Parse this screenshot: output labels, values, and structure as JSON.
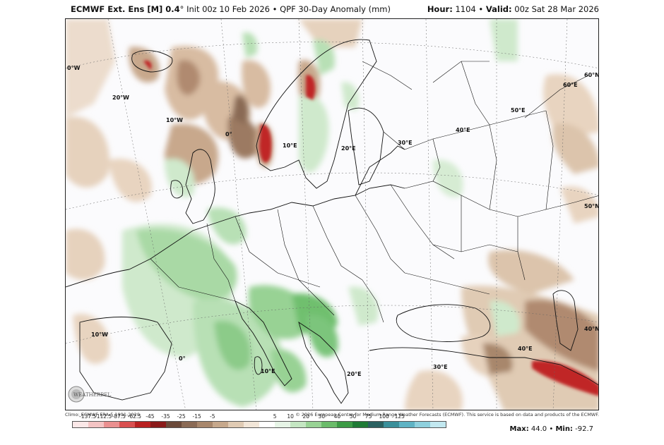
{
  "header": {
    "model": "ECMWF Ext. Ens [M] 0.4",
    "degree": "°",
    "init": "Init 00z 10 Feb 2026",
    "separator": "•",
    "product": "QPF 30-Day Anomaly (mm)",
    "hour_label": "Hour:",
    "hour_value": "1104",
    "valid_label": "Valid:",
    "valid_value": "00z Sat 28 Mar 2026"
  },
  "footer": {
    "climo": "Climo: ECMWF ERA-5 1991-2020",
    "copyright": "© 2026 European Centre for Medium-Range Weather Forecasts (ECMWF). This service is based on data and products of the ECMWF."
  },
  "legend": {
    "ticks": [
      "-137.5",
      "-112.5",
      "-87.5",
      "-62.5",
      "-45",
      "-35",
      "-25",
      "-15",
      "-5",
      "5",
      "10",
      "20",
      "30",
      "40",
      "50",
      "75",
      "100",
      "125"
    ],
    "colors": [
      "#fbe8e8",
      "#f4c4c4",
      "#ea9090",
      "#d95050",
      "#b82020",
      "#8a1a1a",
      "#6b4a3a",
      "#8a6a55",
      "#a8876c",
      "#c6a88c",
      "#e0cbb4",
      "#f2e6d8",
      "#ffffff",
      "#e6f4e6",
      "#c4e6c2",
      "#98d294",
      "#6bbb6a",
      "#3c9a45",
      "#1f7a35",
      "#2a6060",
      "#3a8f9a",
      "#5fb3c4",
      "#8ed0dd",
      "#c2e8f0"
    ]
  },
  "maxmin": {
    "max_label": "Max:",
    "max_value": "44.0",
    "min_label": "Min:",
    "min_value": "-92.7"
  },
  "map_labels": [
    "0°W",
    "20°W",
    "10°W",
    "0°",
    "10°E",
    "20°E",
    "30°E",
    "40°E",
    "50°E",
    "60°E",
    "60°N",
    "50°N",
    "40°N",
    "10°W",
    "0°",
    "10°E",
    "20°E",
    "30°E",
    "40°E"
  ],
  "logo_text": "WEATHERBELL",
  "colors": {
    "dry_light": "#e8d4c0",
    "dry_mid": "#c8a88c",
    "dry_dark": "#8a6a55",
    "very_dry": "#c02828",
    "wet_light": "#cfe9cc",
    "wet_mid": "#98d294",
    "wet_dark": "#5fae62",
    "border": "#111111"
  }
}
